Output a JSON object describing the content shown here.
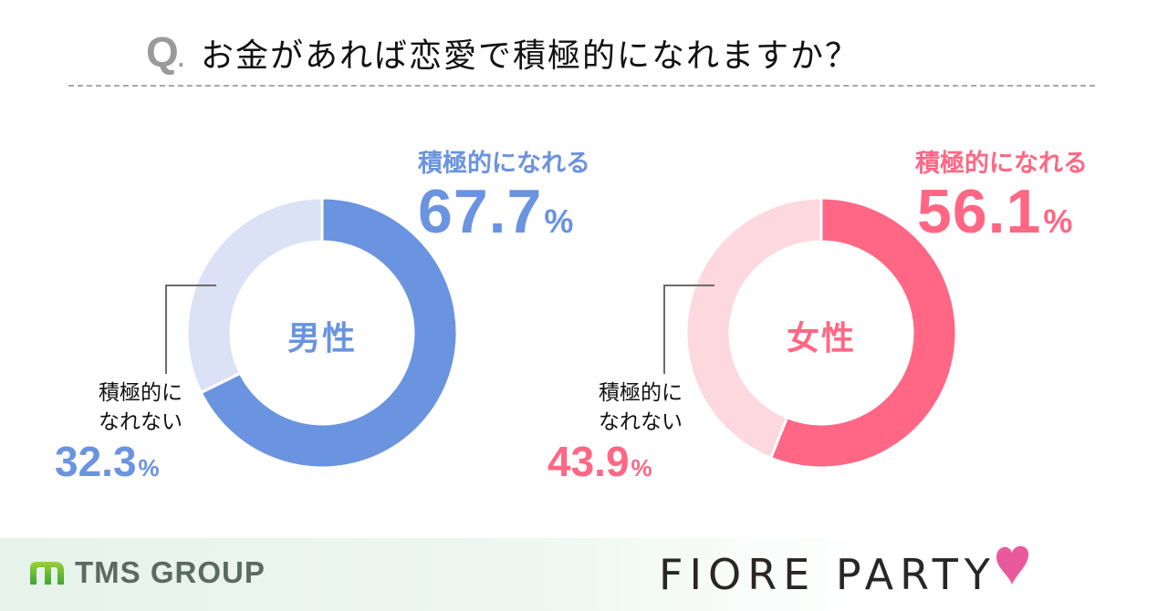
{
  "title": {
    "q_mark": "Q",
    "q_dot": ".",
    "question": "お金があれば恋愛で積極的になれますか？"
  },
  "colors": {
    "male_main": "#6a93e0",
    "male_light": "#dbe2f6",
    "female_main": "#ff6784",
    "female_light": "#fdd8de",
    "leader_line": "#6b6b6b",
    "divider": "#a8a8a8"
  },
  "male": {
    "center_label": "男性",
    "yes_label": "積極的になれる",
    "yes_value": "67.7",
    "yes_pct": "%",
    "no_label_line1": "積極的に",
    "no_label_line2": "なれない",
    "no_value": "32.3",
    "no_pct": "%"
  },
  "female": {
    "center_label": "女性",
    "yes_label": "積極的になれる",
    "yes_value": "56.1",
    "yes_pct": "%",
    "no_label_line1": "積極的に",
    "no_label_line2": "なれない",
    "no_value": "43.9",
    "no_pct": "%"
  },
  "footer": {
    "left_logo": "TMS GROUP",
    "right_logo": "FIORE PARTY"
  },
  "chart_data": [
    {
      "type": "pie",
      "title": "男性",
      "question": "お金があれば恋愛で積極的になれますか？",
      "categories": [
        "積極的になれる",
        "積極的になれない"
      ],
      "values": [
        67.7,
        32.3
      ],
      "unit": "%",
      "colors": [
        "#6a93e0",
        "#dbe2f6"
      ],
      "donut": true
    },
    {
      "type": "pie",
      "title": "女性",
      "question": "お金があれば恋愛で積極的になれますか？",
      "categories": [
        "積極的になれる",
        "積極的になれない"
      ],
      "values": [
        56.1,
        43.9
      ],
      "unit": "%",
      "colors": [
        "#ff6784",
        "#fdd8de"
      ],
      "donut": true
    }
  ]
}
